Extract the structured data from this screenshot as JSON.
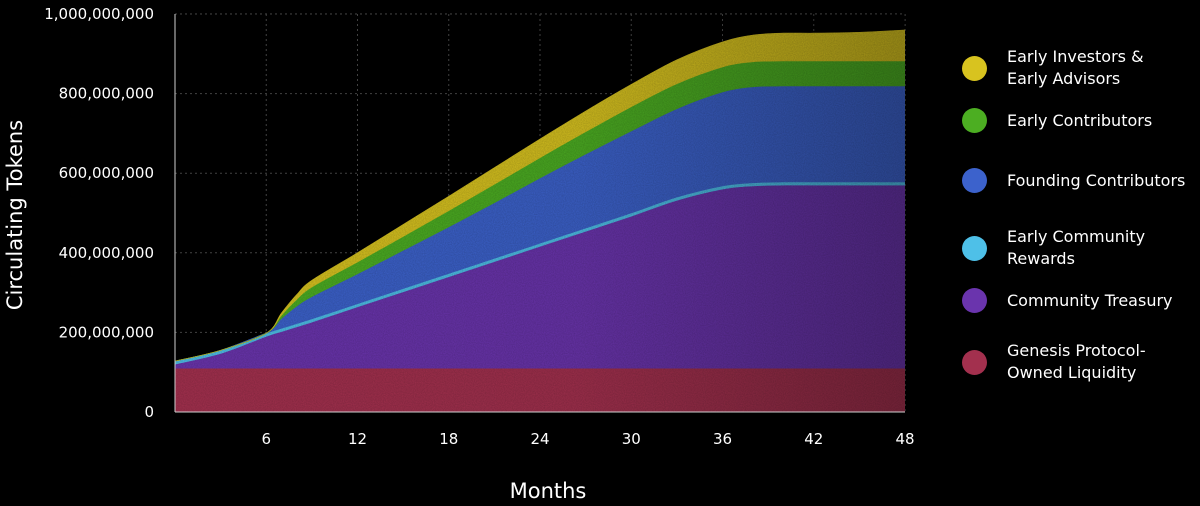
{
  "chart_data": {
    "type": "area",
    "stacked": true,
    "xlabel": "Months",
    "ylabel": "Circulating Tokens",
    "xlim": [
      0,
      48
    ],
    "ylim": [
      0,
      1000000000
    ],
    "x_ticks": [
      6,
      12,
      18,
      24,
      30,
      36,
      42,
      48
    ],
    "y_ticks": [
      0,
      200000000,
      400000000,
      600000000,
      800000000,
      1000000000
    ],
    "x_tick_labels": [
      "6",
      "12",
      "18",
      "24",
      "30",
      "36",
      "42",
      "48"
    ],
    "y_tick_labels": [
      "0",
      "200,000,000",
      "400,000,000",
      "600,000,000",
      "800,000,000",
      "1,000,000,000"
    ],
    "grid": true,
    "legend_position": "right",
    "x": [
      0,
      3,
      6,
      7,
      8,
      9,
      12,
      15,
      18,
      21,
      24,
      27,
      30,
      33,
      36,
      38,
      40,
      42,
      45,
      48
    ],
    "series": [
      {
        "name": "Genesis Protocol-\nOwned Liquidity",
        "color": "#a3304e",
        "values": [
          110000000,
          110000000,
          110000000,
          110000000,
          110000000,
          110000000,
          110000000,
          110000000,
          110000000,
          110000000,
          110000000,
          110000000,
          110000000,
          110000000,
          110000000,
          110000000,
          110000000,
          110000000,
          110000000,
          110000000
        ]
      },
      {
        "name": "Community Treasury",
        "color": "#6a34ad",
        "values": [
          10000000,
          37000000,
          80000000,
          92000000,
          104000000,
          116000000,
          154000000,
          192000000,
          230000000,
          268000000,
          306000000,
          344000000,
          382000000,
          422000000,
          450000000,
          458000000,
          460000000,
          460000000,
          460000000,
          460000000
        ]
      },
      {
        "name": "Early Community\nRewards",
        "color": "#4ec0e8",
        "values": [
          8000000,
          8000000,
          8000000,
          8000000,
          8000000,
          8000000,
          8000000,
          8000000,
          8000000,
          8000000,
          8000000,
          8000000,
          8000000,
          8000000,
          8000000,
          8000000,
          8000000,
          8000000,
          8000000,
          8000000
        ]
      },
      {
        "name": "Founding Contributors",
        "color": "#3c62cc",
        "values": [
          0,
          0,
          0,
          25000000,
          44000000,
          56000000,
          75000000,
          96000000,
          117000000,
          140000000,
          164000000,
          186000000,
          206000000,
          222000000,
          236000000,
          241000000,
          241000000,
          241000000,
          241000000,
          241000000
        ]
      },
      {
        "name": "Early Contributors",
        "color": "#4cae22",
        "values": [
          0,
          0,
          0,
          8000000,
          17000000,
          24000000,
          30000000,
          35000000,
          41000000,
          46000000,
          51000000,
          56000000,
          61000000,
          63000000,
          63000000,
          63000000,
          63000000,
          63000000,
          63000000,
          63000000
        ]
      },
      {
        "name": "Early Investors &\nEarly Advisors",
        "color": "#d8c31f",
        "values": [
          0,
          0,
          0,
          6000000,
          12000000,
          17000000,
          23000000,
          30000000,
          36000000,
          42000000,
          47000000,
          52000000,
          56000000,
          60000000,
          63000000,
          67000000,
          70000000,
          70000000,
          72000000,
          78000000
        ]
      }
    ]
  },
  "legend_order": [
    5,
    4,
    3,
    2,
    1,
    0
  ]
}
